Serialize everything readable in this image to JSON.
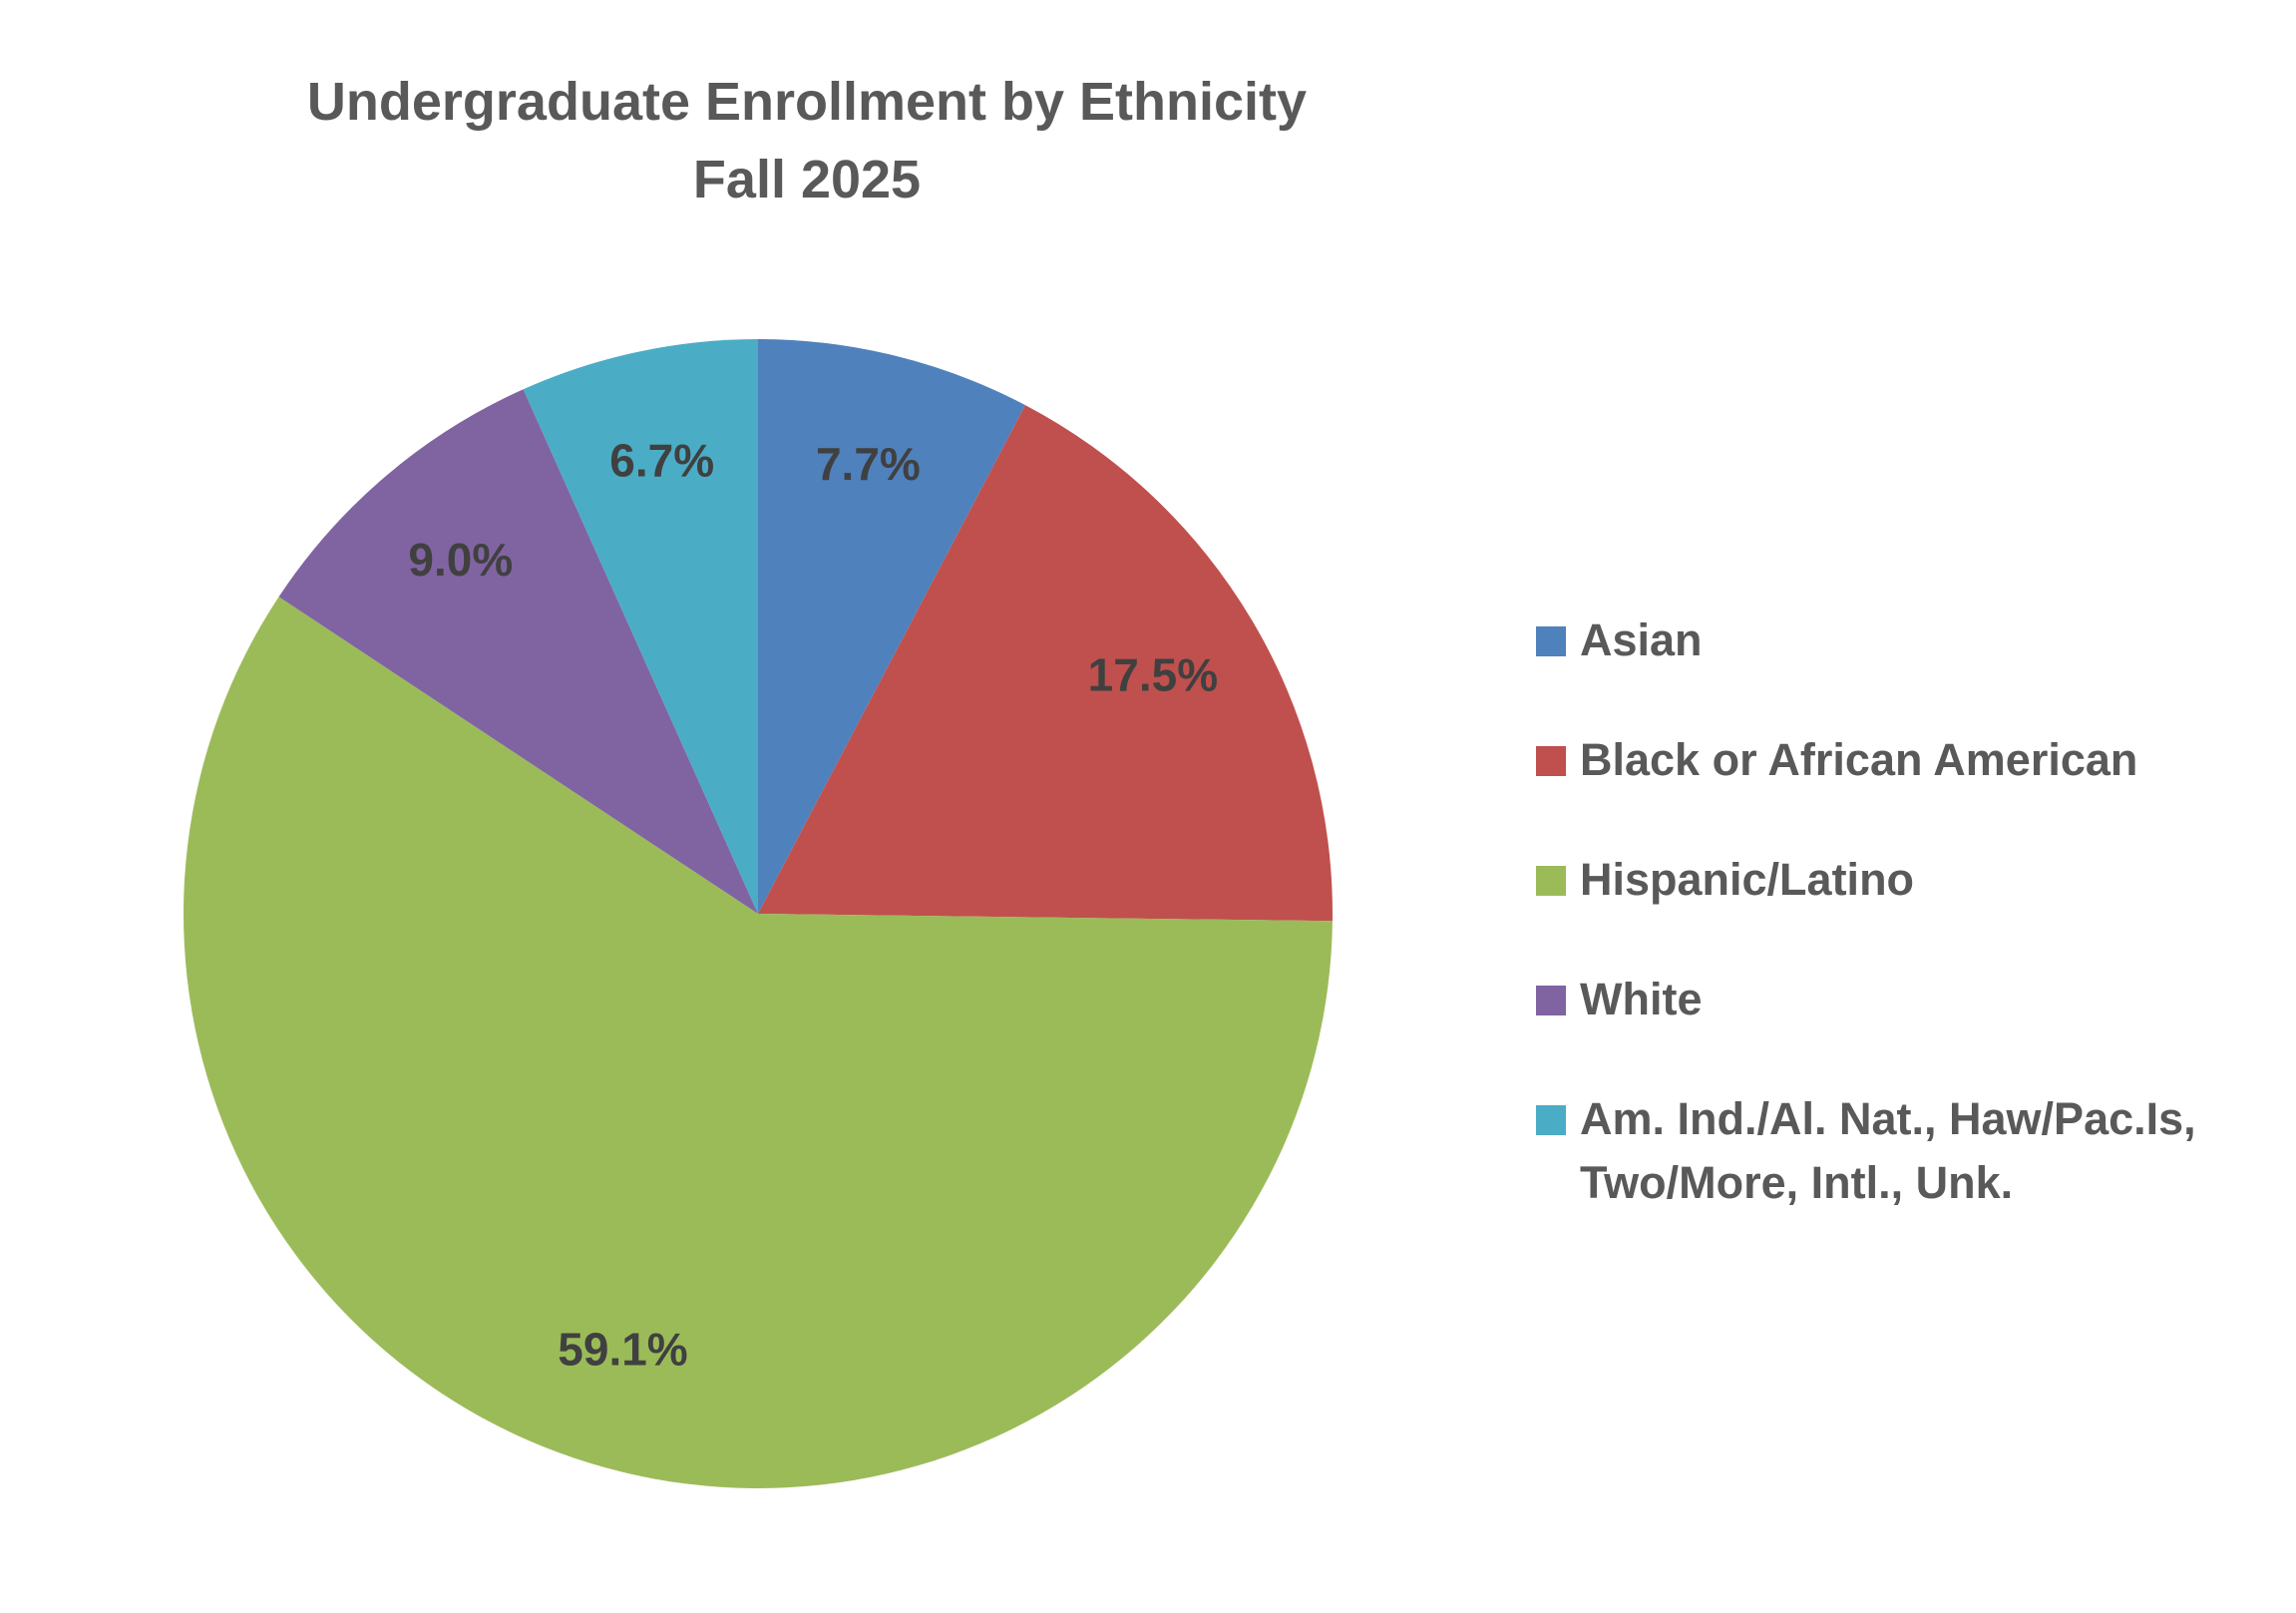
{
  "chart_data": {
    "type": "pie",
    "title": "Undergraduate Enrollment  by Ethnicity",
    "subtitle": "Fall 2025",
    "categories": [
      "Asian",
      "Black or African American",
      "Hispanic/Latino",
      "White",
      "Am. Ind./Al. Nat., Haw/Pac.Is, Two/More, Intl., Unk."
    ],
    "values": [
      7.7,
      17.5,
      59.1,
      9.0,
      6.7
    ],
    "value_labels": [
      "7.7%",
      "17.5%",
      "59.1%",
      "9.0%",
      "6.7%"
    ],
    "colors": [
      "#4f81bd",
      "#c0504d",
      "#9bbb59",
      "#8064a2",
      "#4bacc6"
    ],
    "legend": "right"
  }
}
